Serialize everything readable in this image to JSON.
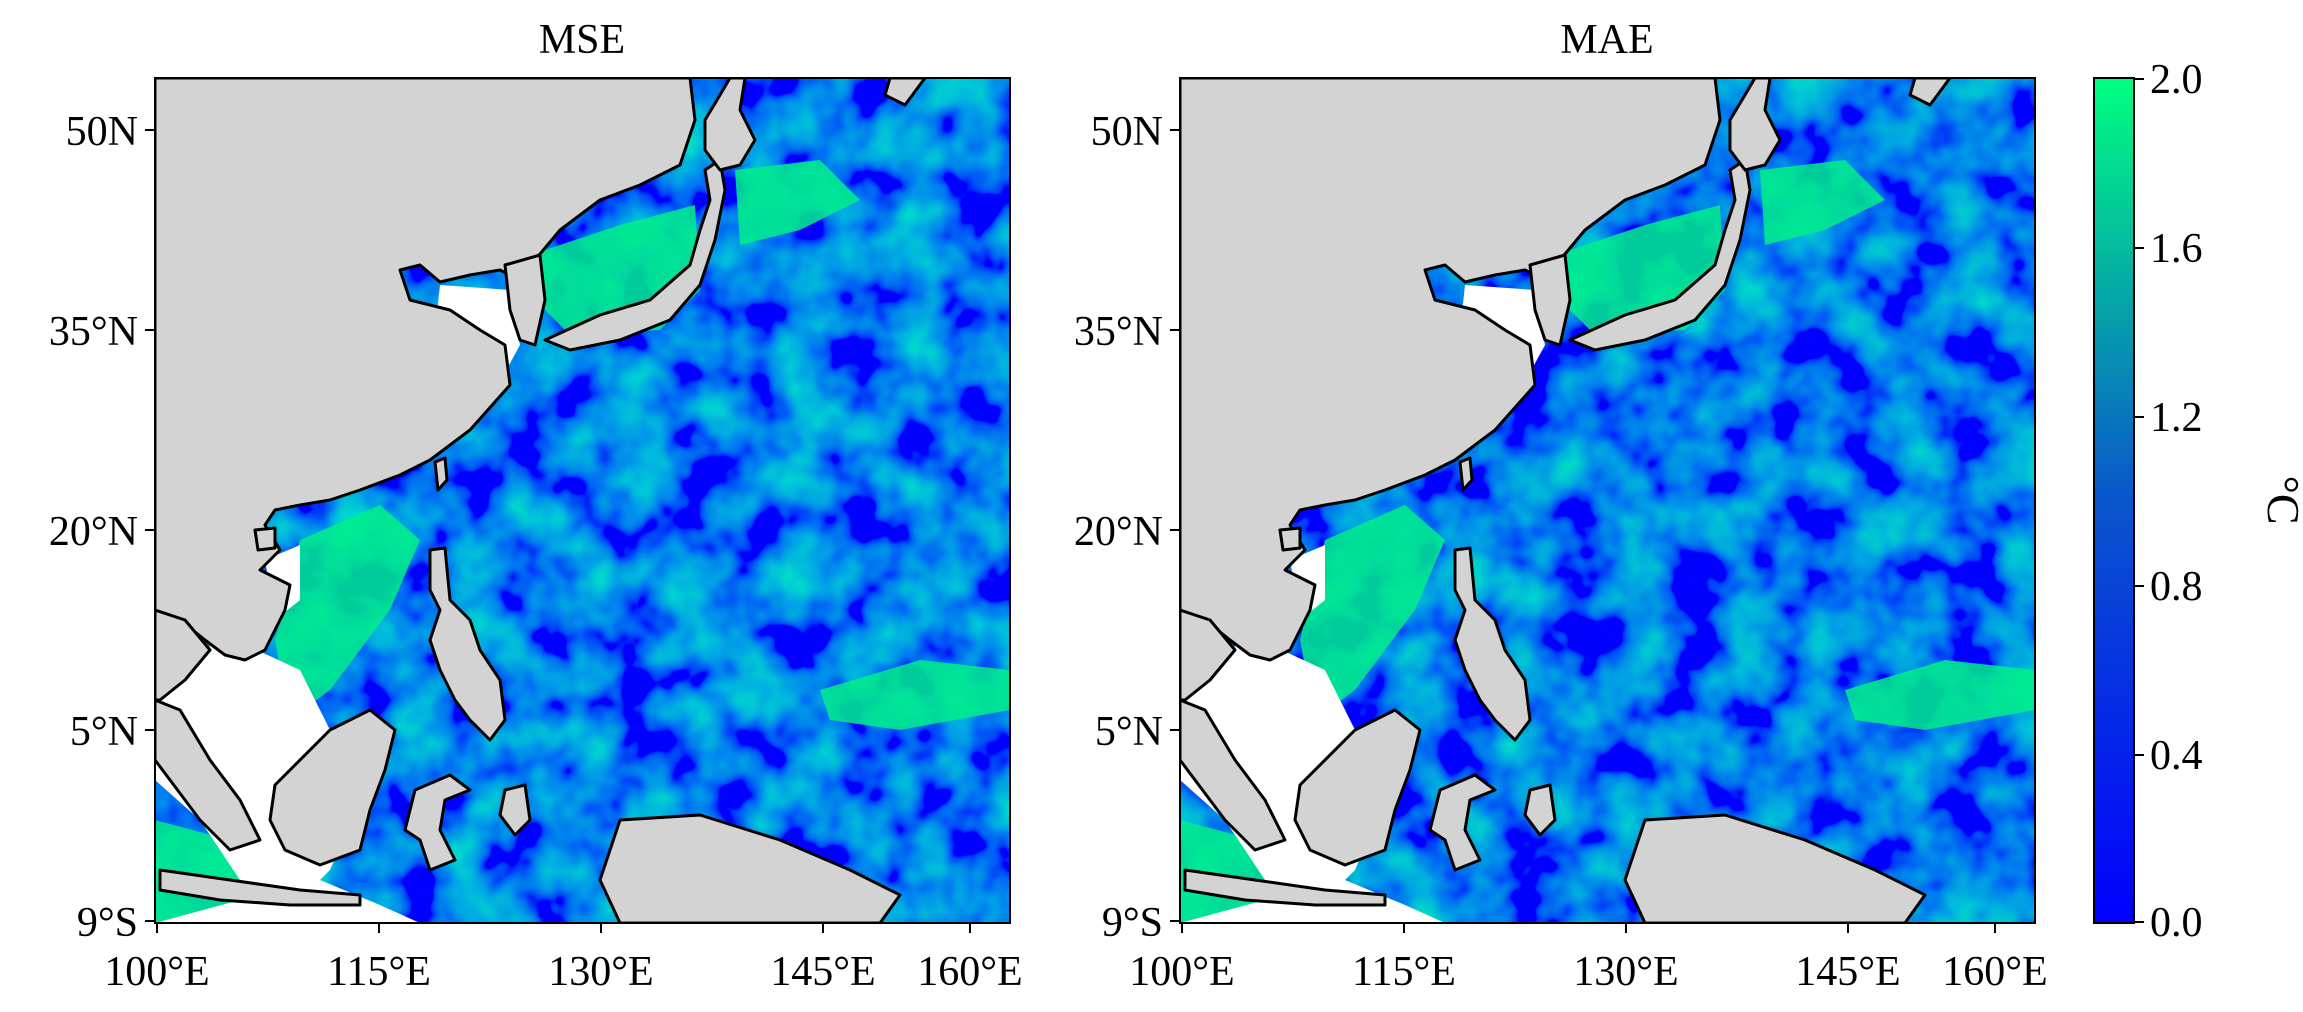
{
  "figure": {
    "panels": [
      {
        "title": "MSE",
        "field_seed": 7
      },
      {
        "title": "MAE",
        "field_seed": 19
      }
    ],
    "lat_ticks": [
      "50N",
      "35°N",
      "20°N",
      "5°N",
      "9°S"
    ],
    "lon_ticks": [
      "100°E",
      "115°E",
      "130°E",
      "145°E",
      "160°E"
    ],
    "colorbar": {
      "label": "°C",
      "ticks": [
        "2.0",
        "1.6",
        "1.2",
        "0.8",
        "0.4",
        "0.0"
      ],
      "min": 0.0,
      "max": 2.0,
      "colors": [
        "#0000ff",
        "#00ff80"
      ]
    },
    "colors": {
      "land": "#d3d3d3",
      "coast": "#000000",
      "nodata": "#ffffff"
    }
  }
}
